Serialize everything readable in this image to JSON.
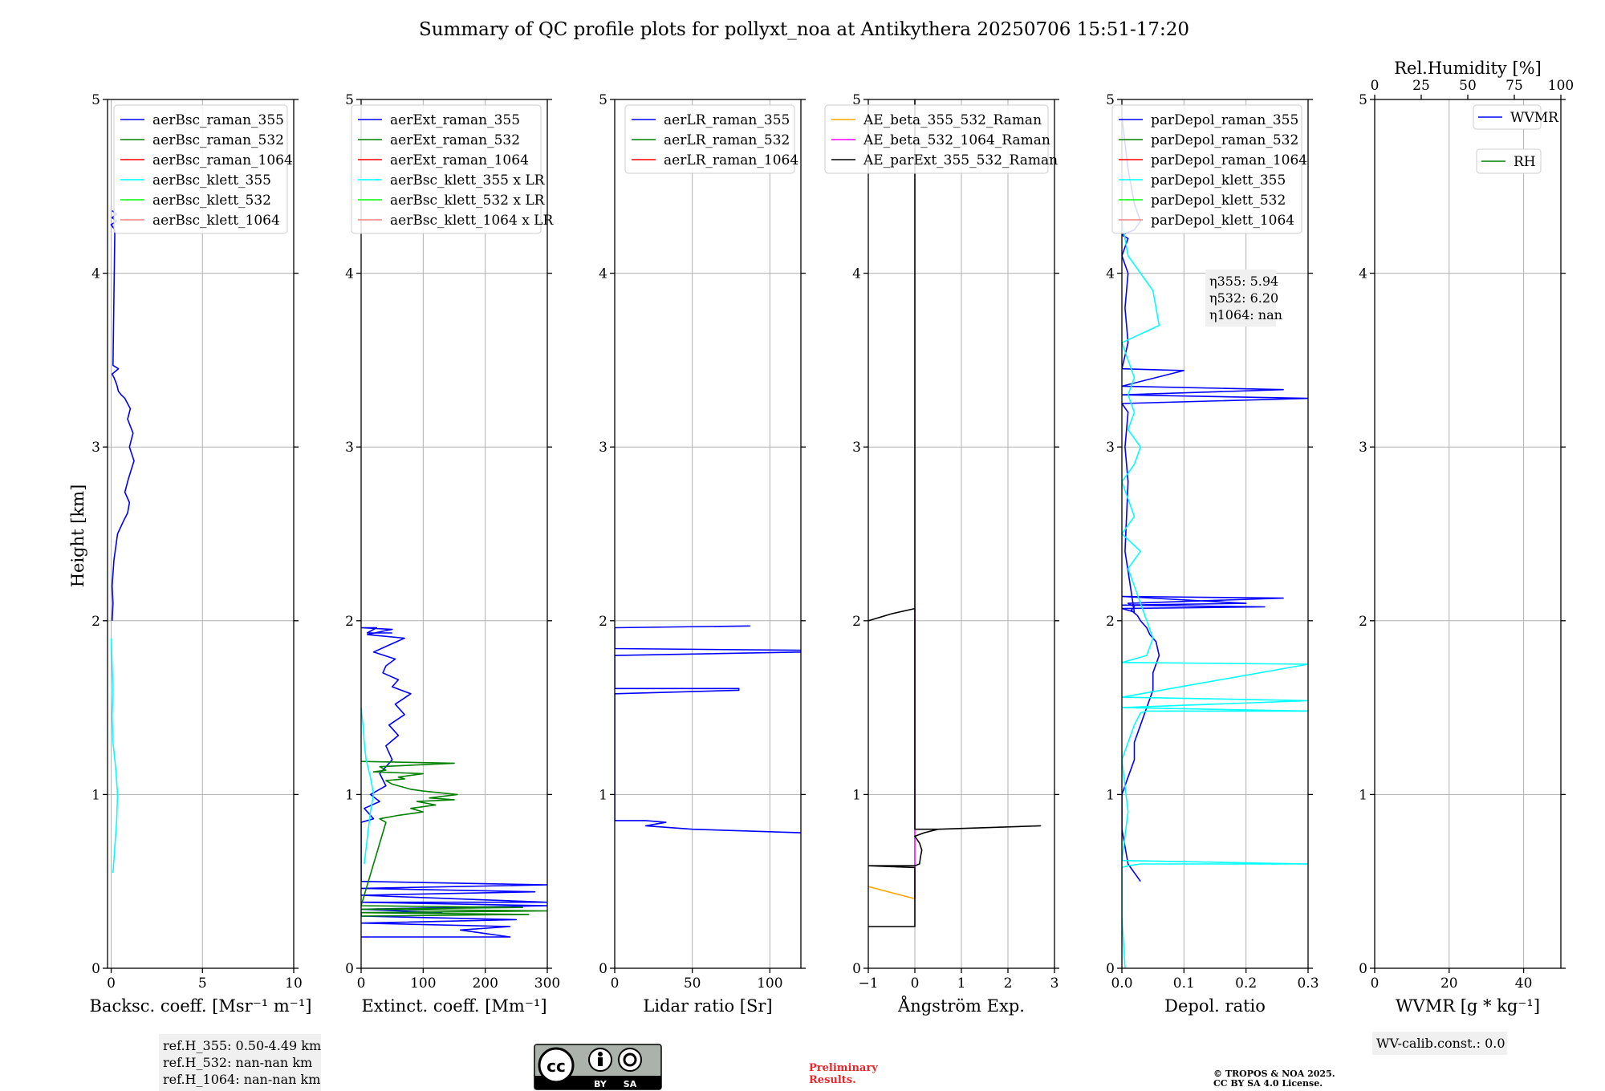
{
  "title": "Summary of QC profile plots for pollyxt_noa at Antikythera 20250706 15:51-17:20",
  "ylabel": "Height [km]",
  "footer": {
    "preliminary_line1": "Preliminary",
    "preliminary_line2": "Results.",
    "copyright_line1": "© TROPOS & NOA 2025.",
    "copyright_line2": "CC BY SA 4.0 License.",
    "license_badge": [
      "BY",
      "SA"
    ]
  },
  "colors": {
    "blue": "#0000ff",
    "green": "#008000",
    "red": "#ff0000",
    "cyan": "#00ffff",
    "lime": "#00ff00",
    "pink": "#f08080",
    "orange": "#ffa500",
    "magenta": "#ff00ff",
    "black": "#000000"
  },
  "chart_data": [
    {
      "id": "bsc",
      "type": "line",
      "xlabel": "Backsc. coeff. [Msr⁻¹ m⁻¹]",
      "xlim": [
        -0.2,
        10
      ],
      "xticks": [
        0,
        5,
        10
      ],
      "ylim": [
        0,
        5
      ],
      "yticks": [
        0,
        1,
        2,
        3,
        4,
        5
      ],
      "grid": true,
      "legend": "upper-right",
      "annotation": [
        "ref.H_355: 0.50-4.49 km",
        "ref.H_532: nan-nan km",
        "ref.H_1064: nan-nan km"
      ],
      "series": [
        {
          "name": "aerBsc_raman_355",
          "color": "#0000ff",
          "x": [
            0.05,
            0.1,
            0.05,
            0.15,
            0.35,
            0.7,
            0.9,
            1.0,
            0.75,
            0.95,
            1.25,
            1.0,
            1.2,
            0.9,
            1.05,
            0.75,
            0.55,
            0.4,
            0.3,
            0.15,
            0.05,
            0.4,
            0.1,
            0.2,
            0.0,
            0.3,
            0.05,
            0.3,
            0.05
          ],
          "y": [
            2.0,
            2.1,
            2.2,
            2.35,
            2.5,
            2.58,
            2.62,
            2.68,
            2.74,
            2.82,
            2.92,
            3.0,
            3.08,
            3.16,
            3.22,
            3.28,
            3.3,
            3.32,
            3.36,
            3.4,
            3.42,
            3.45,
            3.47,
            4.25,
            4.28,
            4.3,
            4.32,
            4.34,
            4.36
          ]
        },
        {
          "name": "aerBsc_raman_532",
          "color": "#008000",
          "x": [],
          "y": []
        },
        {
          "name": "aerBsc_raman_1064",
          "color": "#ff0000",
          "x": [],
          "y": []
        },
        {
          "name": "aerBsc_klett_355",
          "color": "#00ffff",
          "x": [
            0.1,
            0.2,
            0.3,
            0.35,
            0.25,
            0.1,
            0.05,
            0.1,
            0.05,
            0.0
          ],
          "y": [
            0.55,
            0.7,
            0.85,
            1.0,
            1.15,
            1.3,
            1.45,
            1.6,
            1.75,
            1.9
          ]
        },
        {
          "name": "aerBsc_klett_532",
          "color": "#00ff00",
          "x": [],
          "y": []
        },
        {
          "name": "aerBsc_klett_1064",
          "color": "#f08080",
          "x": [],
          "y": []
        }
      ]
    },
    {
      "id": "ext",
      "type": "line",
      "xlabel": "Extinct. coeff. [Mm⁻¹]",
      "xlim": [
        0,
        300
      ],
      "xticks": [
        0,
        100,
        200,
        300
      ],
      "ylim": [
        0,
        5
      ],
      "yticks": [
        0,
        1,
        2,
        3,
        4,
        5
      ],
      "grid": true,
      "legend": "upper-right",
      "series": [
        {
          "name": "aerExt_raman_355",
          "color": "#0000ff",
          "x": [
            0,
            240,
            200,
            160,
            240,
            0,
            250,
            0,
            0,
            130,
            0,
            300,
            0,
            300,
            0,
            280,
            0,
            300,
            0,
            0,
            20,
            5,
            30,
            15,
            40,
            30,
            50,
            40,
            60,
            45,
            70,
            55,
            80,
            50,
            60,
            35,
            40,
            55,
            20,
            45,
            70,
            10,
            35,
            50,
            0,
            25,
            10,
            50
          ],
          "y": [
            0.18,
            0.18,
            0.2,
            0.22,
            0.24,
            0.26,
            0.28,
            0.3,
            0.32,
            0.32,
            0.34,
            0.36,
            0.38,
            0.38,
            0.42,
            0.44,
            0.46,
            0.48,
            0.5,
            0.84,
            0.86,
            0.92,
            0.96,
            1.0,
            1.05,
            1.12,
            1.2,
            1.28,
            1.34,
            1.4,
            1.46,
            1.52,
            1.58,
            1.62,
            1.66,
            1.7,
            1.74,
            1.78,
            1.82,
            1.86,
            1.9,
            1.92,
            1.94,
            1.95,
            1.96,
            1.96,
            1.93,
            1.93
          ]
        },
        {
          "name": "aerExt_raman_532",
          "color": "#008000",
          "x": [
            0,
            270,
            0,
            300,
            0,
            260,
            0,
            40,
            30,
            60,
            100,
            80,
            120,
            90,
            150,
            110,
            155,
            100,
            80,
            60,
            50,
            40,
            70,
            60,
            100,
            20,
            40,
            30,
            150,
            0
          ],
          "y": [
            0.3,
            0.31,
            0.32,
            0.33,
            0.34,
            0.35,
            0.36,
            0.84,
            0.86,
            0.88,
            0.9,
            0.92,
            0.94,
            0.96,
            0.97,
            0.98,
            1.0,
            1.02,
            1.03,
            1.05,
            1.06,
            1.08,
            1.09,
            1.1,
            1.12,
            1.13,
            1.14,
            1.16,
            1.18,
            1.19
          ]
        },
        {
          "name": "aerExt_raman_1064",
          "color": "#ff0000",
          "x": [],
          "y": []
        },
        {
          "name": "aerBsc_klett_355 x LR",
          "color": "#00ffff",
          "x": [
            5,
            10,
            15,
            20,
            15,
            8,
            5,
            3,
            0
          ],
          "y": [
            0.6,
            0.75,
            0.9,
            1.0,
            1.1,
            1.2,
            1.3,
            1.4,
            1.5
          ]
        },
        {
          "name": "aerBsc_klett_532 x LR",
          "color": "#00ff00",
          "x": [],
          "y": []
        },
        {
          "name": "aerBsc_klett_1064 x LR",
          "color": "#f08080",
          "x": [],
          "y": []
        }
      ]
    },
    {
      "id": "lr",
      "type": "line",
      "xlabel": "Lidar ratio [Sr]",
      "xlim": [
        0,
        120
      ],
      "xticks": [
        0,
        50,
        100
      ],
      "ylim": [
        0,
        5
      ],
      "yticks": [
        0,
        1,
        2,
        3,
        4,
        5
      ],
      "grid": true,
      "legend": "upper-right",
      "series": [
        {
          "name": "aerLR_raman_355",
          "color": "#0000ff",
          "x": [
            120,
            50,
            20,
            33,
            20,
            0,
            0,
            80,
            80,
            0,
            0,
            120,
            120,
            0,
            0,
            87,
            0
          ],
          "y": [
            0.78,
            0.8,
            0.82,
            0.84,
            0.85,
            0.85,
            1.58,
            1.6,
            1.61,
            1.61,
            1.8,
            1.82,
            1.83,
            1.84,
            1.96,
            1.97,
            1.96
          ]
        },
        {
          "name": "aerLR_raman_532",
          "color": "#008000",
          "x": [],
          "y": []
        },
        {
          "name": "aerLR_raman_1064",
          "color": "#ff0000",
          "x": [],
          "y": []
        }
      ]
    },
    {
      "id": "ae",
      "type": "line",
      "xlabel": "Ångström Exp.",
      "xlim": [
        -1,
        3
      ],
      "xticks": [
        -1,
        0,
        1,
        2,
        3
      ],
      "ylim": [
        0,
        5
      ],
      "yticks": [
        0,
        1,
        2,
        3,
        4,
        5
      ],
      "grid": true,
      "legend": "upper-right",
      "series": [
        {
          "name": "AE_beta_355_532_Raman",
          "color": "#ffa500",
          "x": [
            -1,
            0
          ],
          "y": [
            0.47,
            0.4
          ]
        },
        {
          "name": "AE_beta_532_1064_Raman",
          "color": "#ff00ff",
          "x": [
            0,
            0
          ],
          "y": [
            0.4,
            2.07
          ]
        },
        {
          "name": "AE_parExt_355_532_Raman",
          "color": "#000000",
          "x": [
            -1,
            0,
            0,
            -1,
            -1,
            0,
            0.1,
            0.12,
            0.15,
            0.1,
            0.05,
            0.0,
            0.2,
            0.5,
            2.7,
            0.5,
            0.0,
            0.0,
            -0.5,
            -1,
            -0.5,
            0,
            0
          ],
          "y": [
            0.24,
            0.24,
            0.58,
            0.59,
            0.59,
            0.59,
            0.6,
            0.64,
            0.68,
            0.72,
            0.74,
            0.76,
            0.78,
            0.8,
            0.82,
            0.8,
            0.8,
            2.07,
            2.04,
            2.0,
            2.04,
            2.07,
            5.0
          ]
        }
      ]
    },
    {
      "id": "depol",
      "type": "line",
      "xlabel": "Depol. ratio",
      "xlim": [
        0,
        0.3
      ],
      "xticks": [
        0.0,
        0.1,
        0.2,
        0.3
      ],
      "ylim": [
        0,
        5
      ],
      "yticks": [
        0,
        1,
        2,
        3,
        4,
        5
      ],
      "grid": true,
      "legend": "upper-right",
      "annotation": [
        "η355: 5.94",
        "η532: 6.20",
        "η1064: nan"
      ],
      "series": [
        {
          "name": "parDepol_raman_355",
          "color": "#0000ff",
          "x": [
            0.03,
            0.01,
            0.0,
            0.0,
            0.01,
            0.02,
            0.02,
            0.03,
            0.04,
            0.05,
            0.05,
            0.06,
            0.055,
            0.045,
            0.04,
            0.03,
            0.025,
            0.015,
            0.02,
            0.01,
            0.26,
            0.0,
            0.2,
            0.0,
            0.23,
            0.0,
            0.02,
            0.005,
            0.01,
            0.005,
            0.01,
            0.0,
            0.3,
            0.0,
            0.26,
            0.0,
            0.1,
            0.0,
            0.01,
            0.005,
            0.01,
            0.0,
            0.01,
            0.0,
            0.02,
            0.03,
            0.02,
            0.01,
            0.0
          ],
          "y": [
            0.5,
            0.6,
            0.8,
            1.0,
            1.1,
            1.2,
            1.3,
            1.4,
            1.5,
            1.6,
            1.7,
            1.8,
            1.88,
            1.92,
            1.96,
            2.0,
            2.03,
            2.06,
            2.08,
            2.1,
            2.13,
            2.14,
            2.1,
            2.09,
            2.08,
            2.07,
            2.05,
            2.4,
            2.8,
            3.0,
            3.2,
            3.25,
            3.28,
            3.3,
            3.33,
            3.35,
            3.44,
            3.45,
            3.6,
            3.8,
            4.0,
            4.1,
            4.2,
            4.22,
            4.25,
            4.3,
            4.4,
            4.6,
            4.9
          ]
        },
        {
          "name": "parDepol_raman_532",
          "color": "#008000",
          "x": [],
          "y": []
        },
        {
          "name": "parDepol_raman_1064",
          "color": "#ff0000",
          "x": [],
          "y": []
        },
        {
          "name": "parDepol_klett_355",
          "color": "#00ffff",
          "x": [
            0.005,
            0.0,
            0.0,
            0.01,
            0.03,
            0.3,
            0.0,
            0.01,
            0.0,
            0.02,
            0.03,
            0.04,
            0.3,
            0.0,
            0.3,
            0.0,
            0.3,
            0.0,
            0.04,
            0.05,
            0.03,
            0.02,
            0.01,
            0.03,
            0.0,
            0.02,
            0.0,
            0.02,
            0.03,
            0.01,
            0.02,
            0.01,
            0.02,
            0.01,
            0.0,
            0.06,
            0.05,
            0.03,
            0.01,
            0.0
          ],
          "y": [
            0.0,
            0.3,
            0.58,
            0.59,
            0.6,
            0.6,
            0.62,
            0.9,
            1.2,
            1.4,
            1.47,
            1.48,
            1.48,
            1.5,
            1.54,
            1.56,
            1.75,
            1.76,
            1.8,
            1.9,
            2.1,
            2.2,
            2.3,
            2.4,
            2.5,
            2.6,
            2.8,
            2.9,
            3.0,
            3.1,
            3.2,
            3.3,
            3.4,
            3.5,
            3.6,
            3.7,
            3.9,
            4.0,
            4.1,
            4.3
          ]
        },
        {
          "name": "parDepol_klett_532",
          "color": "#00ff00",
          "x": [],
          "y": []
        },
        {
          "name": "parDepol_klett_1064",
          "color": "#f08080",
          "x": [],
          "y": []
        }
      ]
    },
    {
      "id": "wv",
      "type": "line",
      "xlabel": "WVMR [g * kg⁻¹]",
      "xlim": [
        0,
        50
      ],
      "xticks": [
        0,
        20,
        40
      ],
      "x2label": "Rel.Humidity [%]",
      "x2lim": [
        0,
        100
      ],
      "x2ticks": [
        0,
        25,
        50,
        75,
        100
      ],
      "ylim": [
        0,
        5
      ],
      "yticks": [
        0,
        1,
        2,
        3,
        4,
        5
      ],
      "grid": true,
      "legend": "upper-right",
      "annotation": [
        "WV-calib.const.: 0.0"
      ],
      "series": [
        {
          "name": "WVMR",
          "color": "#0000ff",
          "x": [],
          "y": []
        },
        {
          "name": "RH",
          "color": "#008000",
          "x": [],
          "y": []
        }
      ]
    }
  ]
}
